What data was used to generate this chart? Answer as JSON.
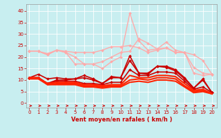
{
  "bg_color": "#c8eef0",
  "grid_color": "#ffffff",
  "xlabel": "Vent moyen/en rafales ( km/h )",
  "xlabel_color": "#cc0000",
  "xticks": [
    0,
    1,
    2,
    3,
    4,
    5,
    6,
    7,
    8,
    9,
    10,
    11,
    12,
    13,
    14,
    15,
    16,
    17,
    18,
    19,
    20
  ],
  "yticks": [
    0,
    5,
    10,
    15,
    20,
    25,
    30,
    35,
    40
  ],
  "ylim": [
    -2,
    43
  ],
  "xlim": [
    -0.3,
    20.5
  ],
  "lines": [
    {
      "x": [
        0,
        1,
        2,
        3,
        4,
        5,
        6,
        7,
        8,
        9,
        10,
        11,
        12,
        13,
        14,
        15,
        16,
        17,
        18,
        19,
        20
      ],
      "y": [
        22.5,
        22.5,
        21.5,
        23,
        22.5,
        22,
        22,
        22,
        23,
        24.5,
        24.5,
        25,
        24,
        22,
        23,
        24,
        22,
        22,
        21,
        18.5,
        12.5
      ],
      "color": "#ffaaaa",
      "marker": "D",
      "ms": 2,
      "lw": 1.0
    },
    {
      "x": [
        0,
        1,
        2,
        3,
        4,
        5,
        6,
        7,
        8,
        9,
        10,
        11,
        12,
        13,
        14,
        15,
        16,
        17,
        18,
        19,
        20
      ],
      "y": [
        22.5,
        22.5,
        21,
        23,
        22,
        20,
        17,
        17,
        18,
        20,
        22,
        22.5,
        28,
        26,
        23.5,
        26.5,
        23,
        22,
        15.5,
        13,
        12.5
      ],
      "color": "#ffaaaa",
      "marker": "D",
      "ms": 2,
      "lw": 1.0
    },
    {
      "x": [
        0,
        1,
        2,
        3,
        4,
        5,
        6,
        7,
        8,
        9,
        10,
        11,
        12,
        13,
        14,
        15,
        16,
        17,
        18,
        19,
        20
      ],
      "y": [
        22.5,
        22.5,
        21,
        23,
        22,
        17,
        17,
        17,
        15,
        18,
        20,
        39,
        27,
        23,
        23.5,
        24,
        22,
        22,
        13,
        12,
        12.5
      ],
      "color": "#ffaaaa",
      "marker": "D",
      "ms": 2,
      "lw": 1.0
    },
    {
      "x": [
        0,
        1,
        2,
        3,
        4,
        5,
        6,
        7,
        8,
        9,
        10,
        11,
        12,
        13,
        14,
        15,
        16,
        17,
        18,
        19,
        20
      ],
      "y": [
        11,
        12.5,
        10.5,
        11,
        10.5,
        10.5,
        12,
        10.5,
        8.5,
        11.5,
        11,
        20.5,
        13,
        13,
        16,
        16,
        14.5,
        11,
        6.5,
        10.5,
        4.5
      ],
      "color": "#cc0000",
      "marker": "D",
      "ms": 2,
      "lw": 1.2
    },
    {
      "x": [
        0,
        1,
        2,
        3,
        4,
        5,
        6,
        7,
        8,
        9,
        10,
        11,
        12,
        13,
        14,
        15,
        16,
        17,
        18,
        19,
        20
      ],
      "y": [
        11,
        11,
        8.5,
        10,
        10,
        10.5,
        11,
        10,
        8.5,
        11,
        11,
        18.5,
        13,
        12.5,
        16,
        15.5,
        14,
        10.5,
        6.5,
        10,
        4.5
      ],
      "color": "#cc0000",
      "marker": "D",
      "ms": 2,
      "lw": 1.2
    },
    {
      "x": [
        0,
        1,
        2,
        3,
        4,
        5,
        6,
        7,
        8,
        9,
        10,
        11,
        12,
        13,
        14,
        15,
        16,
        17,
        18,
        19,
        20
      ],
      "y": [
        11,
        11,
        8.5,
        9.5,
        9.5,
        9.5,
        8.5,
        8.5,
        8,
        9,
        9,
        14.5,
        12,
        12,
        13.5,
        13.5,
        13,
        9.5,
        6,
        7,
        4.5
      ],
      "color": "#cc0000",
      "marker": "D",
      "ms": 2,
      "lw": 1.2
    },
    {
      "x": [
        0,
        1,
        2,
        3,
        4,
        5,
        6,
        7,
        8,
        9,
        10,
        11,
        12,
        13,
        14,
        15,
        16,
        17,
        18,
        19,
        20
      ],
      "y": [
        11,
        11,
        8.5,
        9,
        9,
        9,
        8,
        8,
        7.5,
        8,
        8,
        12,
        11,
        11,
        12,
        12,
        11.5,
        8.5,
        5.5,
        6,
        4
      ],
      "color": "#ff2200",
      "marker": null,
      "ms": 0,
      "lw": 1.5
    },
    {
      "x": [
        0,
        1,
        2,
        3,
        4,
        5,
        6,
        7,
        8,
        9,
        10,
        11,
        12,
        13,
        14,
        15,
        16,
        17,
        18,
        19,
        20
      ],
      "y": [
        11,
        11,
        8,
        8.5,
        8.5,
        8.5,
        7.5,
        7.5,
        7,
        7.5,
        7.5,
        10,
        10.5,
        10,
        11,
        11,
        10.5,
        7.5,
        5,
        5.5,
        4
      ],
      "color": "#ff2200",
      "marker": null,
      "ms": 0,
      "lw": 1.5
    },
    {
      "x": [
        0,
        1,
        2,
        3,
        4,
        5,
        6,
        7,
        8,
        9,
        10,
        11,
        12,
        13,
        14,
        15,
        16,
        17,
        18,
        19,
        20
      ],
      "y": [
        10.5,
        10.5,
        8,
        8,
        8,
        8,
        7,
        7,
        6.5,
        7,
        7,
        9,
        9.5,
        9,
        10,
        10,
        9.5,
        7,
        4.5,
        5,
        4
      ],
      "color": "#ff2200",
      "marker": null,
      "ms": 0,
      "lw": 1.5
    }
  ],
  "tick_label_color": "#cc0000",
  "arrow_color": "#cc0000"
}
